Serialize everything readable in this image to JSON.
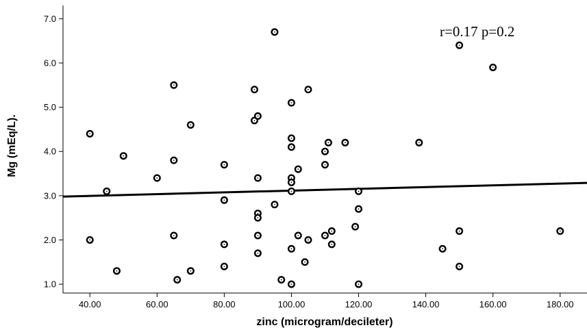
{
  "chart_data": {
    "type": "scatter",
    "title": "",
    "xlabel": "zinc (microgram/decileter)",
    "ylabel": "Mg (mEq/L).",
    "xlim": [
      32,
      188
    ],
    "ylim": [
      0.8,
      7.3
    ],
    "x_ticks": [
      40,
      60,
      80,
      100,
      120,
      140,
      160,
      180
    ],
    "x_tick_labels": [
      "40.00",
      "60.00",
      "80.00",
      "100.00",
      "120.00",
      "140.00",
      "160.00",
      "180.00"
    ],
    "y_ticks": [
      1,
      2,
      3,
      4,
      5,
      6,
      7
    ],
    "y_tick_labels": [
      "1.0",
      "2.0",
      "3.0",
      "4.0",
      "5.0",
      "6.0",
      "7.0"
    ],
    "annotation": "r=0.17 p=0.2",
    "grid": false,
    "points": [
      {
        "x": 40,
        "y": 4.4
      },
      {
        "x": 40,
        "y": 2.0
      },
      {
        "x": 45,
        "y": 3.1
      },
      {
        "x": 48,
        "y": 1.3
      },
      {
        "x": 50,
        "y": 3.9
      },
      {
        "x": 60,
        "y": 3.4
      },
      {
        "x": 65,
        "y": 5.5
      },
      {
        "x": 65,
        "y": 3.8
      },
      {
        "x": 65,
        "y": 2.1
      },
      {
        "x": 66,
        "y": 1.1
      },
      {
        "x": 70,
        "y": 4.6
      },
      {
        "x": 70,
        "y": 1.3
      },
      {
        "x": 80,
        "y": 3.7
      },
      {
        "x": 80,
        "y": 2.9
      },
      {
        "x": 80,
        "y": 1.9
      },
      {
        "x": 80,
        "y": 1.4
      },
      {
        "x": 89,
        "y": 5.4
      },
      {
        "x": 89,
        "y": 4.7
      },
      {
        "x": 90,
        "y": 4.8
      },
      {
        "x": 90,
        "y": 3.4
      },
      {
        "x": 90,
        "y": 2.6
      },
      {
        "x": 90,
        "y": 2.5
      },
      {
        "x": 90,
        "y": 2.1
      },
      {
        "x": 90,
        "y": 1.7
      },
      {
        "x": 95,
        "y": 6.7
      },
      {
        "x": 95,
        "y": 2.8
      },
      {
        "x": 97,
        "y": 1.1
      },
      {
        "x": 100,
        "y": 5.1
      },
      {
        "x": 100,
        "y": 4.3
      },
      {
        "x": 100,
        "y": 4.1
      },
      {
        "x": 100,
        "y": 3.4
      },
      {
        "x": 100,
        "y": 3.3
      },
      {
        "x": 100,
        "y": 3.1
      },
      {
        "x": 100,
        "y": 1.8
      },
      {
        "x": 100,
        "y": 1.0
      },
      {
        "x": 102,
        "y": 3.6
      },
      {
        "x": 102,
        "y": 2.1
      },
      {
        "x": 104,
        "y": 1.5
      },
      {
        "x": 105,
        "y": 5.4
      },
      {
        "x": 105,
        "y": 2.0
      },
      {
        "x": 110,
        "y": 4.0
      },
      {
        "x": 110,
        "y": 3.7
      },
      {
        "x": 110,
        "y": 2.1
      },
      {
        "x": 111,
        "y": 4.2
      },
      {
        "x": 112,
        "y": 2.2
      },
      {
        "x": 112,
        "y": 1.9
      },
      {
        "x": 116,
        "y": 4.2
      },
      {
        "x": 119,
        "y": 2.3
      },
      {
        "x": 120,
        "y": 3.1
      },
      {
        "x": 120,
        "y": 2.7
      },
      {
        "x": 120,
        "y": 1.0
      },
      {
        "x": 138,
        "y": 4.2
      },
      {
        "x": 145,
        "y": 1.8
      },
      {
        "x": 150,
        "y": 6.4
      },
      {
        "x": 150,
        "y": 2.2
      },
      {
        "x": 150,
        "y": 1.4
      },
      {
        "x": 160,
        "y": 5.9
      },
      {
        "x": 180,
        "y": 2.2
      }
    ],
    "fit_line": {
      "x": [
        32,
        188
      ],
      "y": [
        2.98,
        3.29
      ]
    }
  }
}
